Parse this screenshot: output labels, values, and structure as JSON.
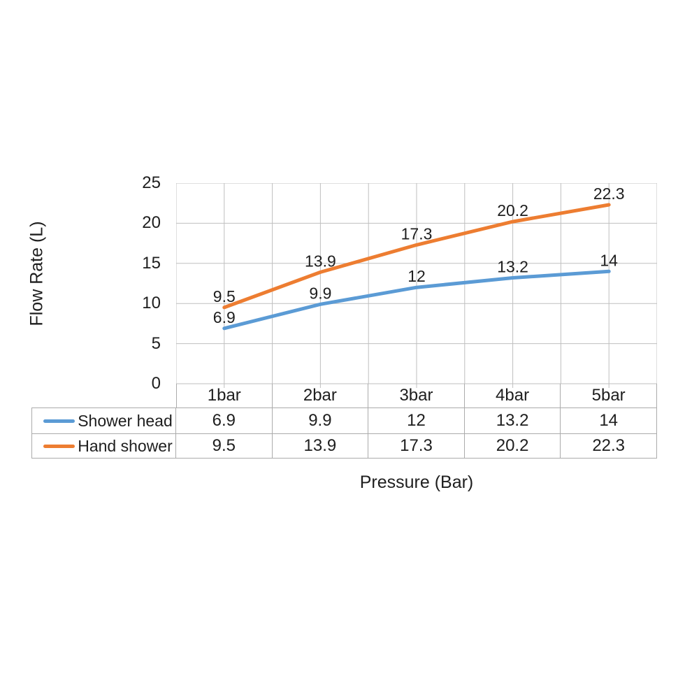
{
  "chart_data": {
    "type": "line",
    "categories": [
      "1bar",
      "2bar",
      "3bar",
      "4bar",
      "5bar"
    ],
    "series": [
      {
        "name": "Shower head",
        "color": "#5B9BD5",
        "values": [
          6.9,
          9.9,
          12,
          13.2,
          14
        ]
      },
      {
        "name": "Hand shower",
        "color": "#ED7D31",
        "values": [
          9.5,
          13.9,
          17.3,
          20.2,
          22.3
        ]
      }
    ],
    "xlabel": "Pressure (Bar)",
    "ylabel": "Flow Rate (L)",
    "ylim": [
      0,
      25
    ],
    "ytick_step": 5,
    "yticks": [
      0,
      5,
      10,
      15,
      20,
      25
    ],
    "grid": true,
    "minor_vertical_grid": true,
    "data_labels": true,
    "legend_position": "data-table-left",
    "gridline_color": "#BFBFBF",
    "table_border_color": "#ABABAB",
    "text_color": "#1E1E1E",
    "background_color": "#FFFFFF"
  }
}
